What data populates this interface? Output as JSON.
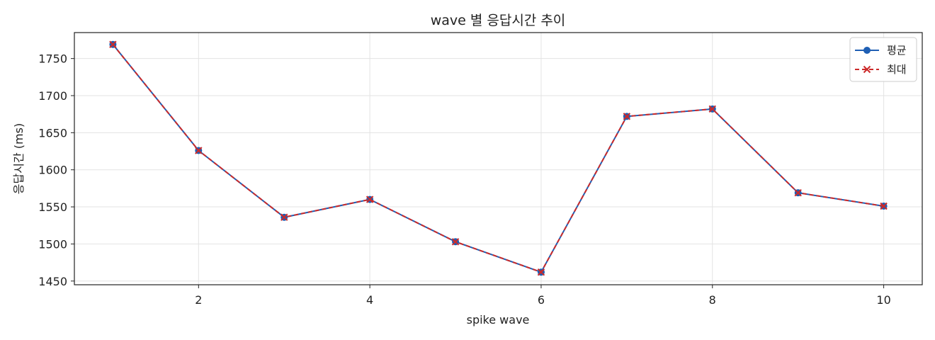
{
  "chart_data": {
    "type": "line",
    "title": "wave 별 응답시간 추이",
    "xlabel": "spike wave",
    "ylabel": "응답시간 (ms)",
    "x": [
      1,
      2,
      3,
      4,
      5,
      6,
      7,
      8,
      9,
      10
    ],
    "xlim": [
      0.55,
      10.45
    ],
    "ylim": [
      1445,
      1785
    ],
    "xticks": [
      2,
      4,
      6,
      8,
      10
    ],
    "yticks": [
      1450,
      1500,
      1550,
      1600,
      1650,
      1700,
      1750
    ],
    "grid": true,
    "legend_position": "top-right",
    "series": [
      {
        "name": "평균",
        "values": [
          1769,
          1626,
          1536,
          1560,
          1503,
          1462,
          1672,
          1682,
          1569,
          1551
        ],
        "color": "#1f5fb4",
        "line_style": "solid",
        "marker": "circle"
      },
      {
        "name": "최대",
        "values": [
          1769,
          1626,
          1536,
          1560,
          1503,
          1462,
          1672,
          1682,
          1569,
          1551
        ],
        "color": "#cc2a2a",
        "line_style": "dashed",
        "marker": "x"
      }
    ]
  }
}
